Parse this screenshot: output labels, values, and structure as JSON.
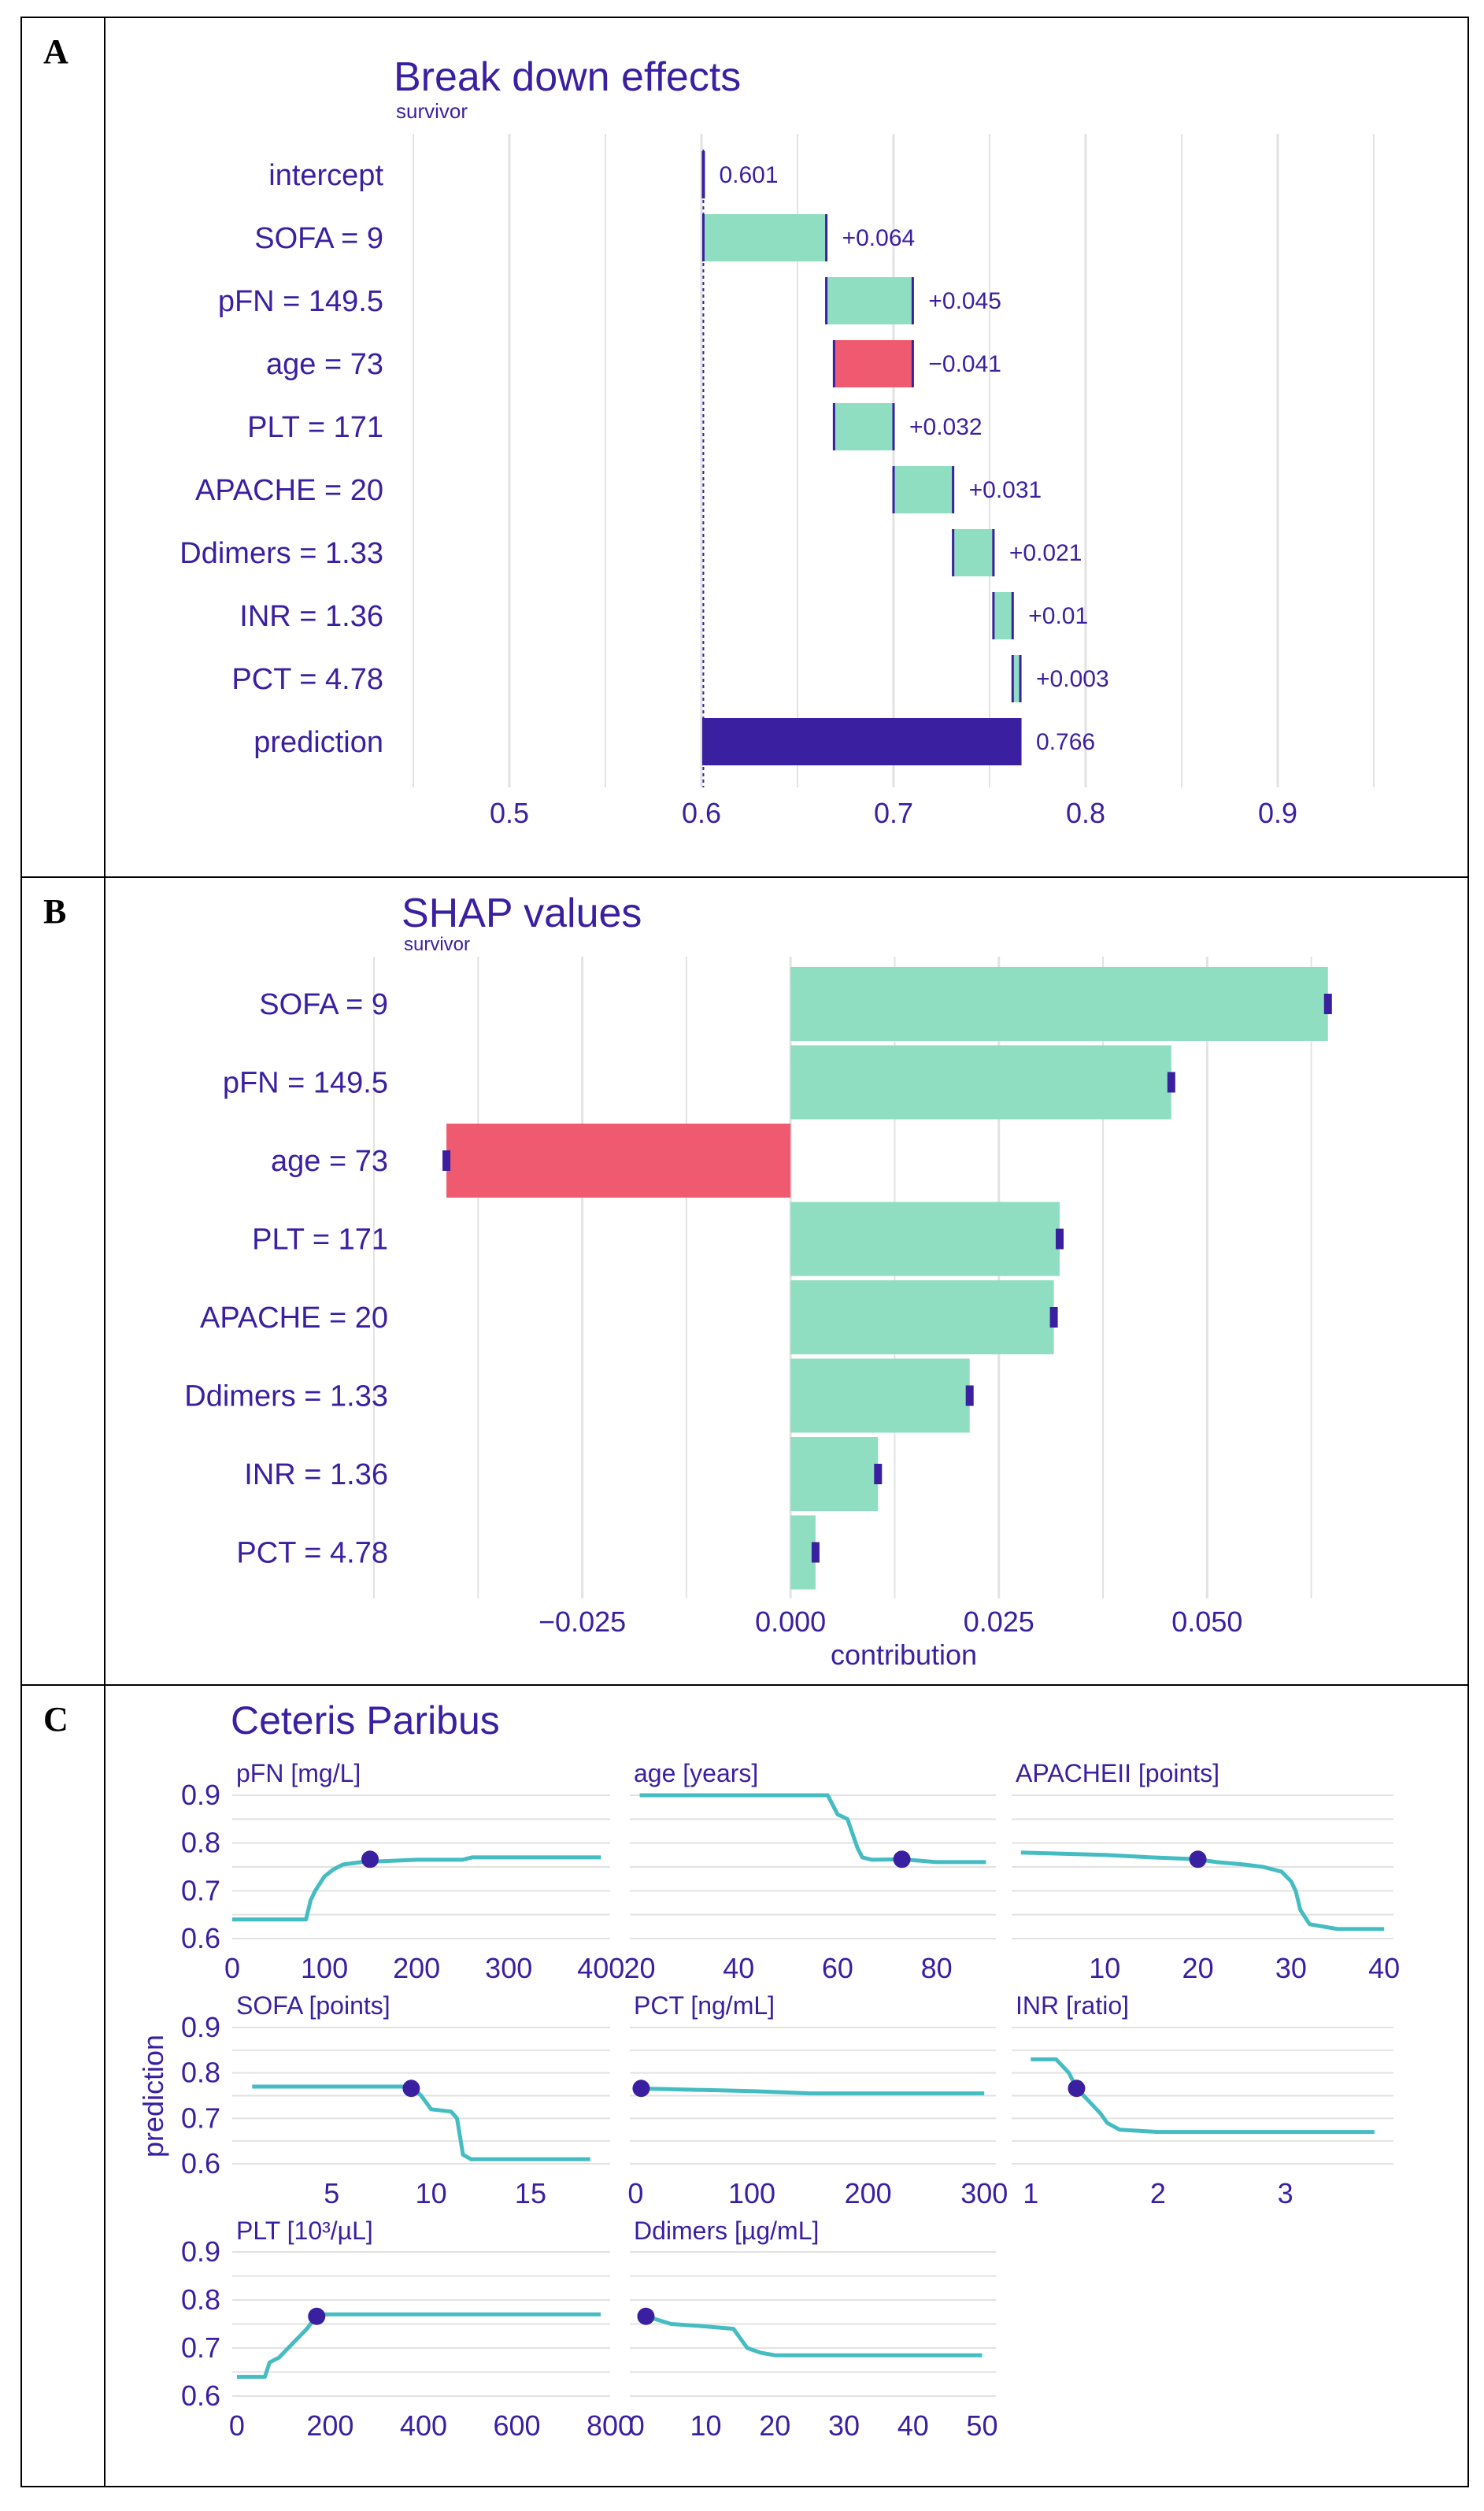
{
  "panels": [
    {
      "letter": "A"
    },
    {
      "letter": "B"
    },
    {
      "letter": "C"
    }
  ],
  "colors": {
    "positive": "#8fdec1",
    "negative": "#f05a71",
    "prediction": "#3a1fa0",
    "text": "#3a1fa0",
    "line": "#45bcc1",
    "grid": "#e2e2e2"
  },
  "chart_data": [
    {
      "type": "bar",
      "subtype": "waterfall",
      "title": "Break down effects",
      "subtitle": "survivor",
      "categories": [
        "intercept",
        "SOFA = 9",
        "pFN = 149.5",
        "age = 73",
        "PLT = 171",
        "APACHE = 20",
        "Ddimers = 1.33",
        "INR = 1.36",
        "PCT = 4.78",
        "prediction"
      ],
      "starts": [
        0.601,
        0.601,
        0.665,
        0.71,
        0.669,
        0.7,
        0.731,
        0.752,
        0.762,
        0.601
      ],
      "ends": [
        0.601,
        0.665,
        0.71,
        0.669,
        0.7,
        0.731,
        0.752,
        0.762,
        0.766,
        0.766
      ],
      "labels": [
        "0.601",
        "+0.064",
        "+0.045",
        "−0.041",
        "+0.032",
        "+0.031",
        "+0.021",
        "+0.01",
        "+0.003",
        "0.766"
      ],
      "kinds": [
        "intercept",
        "pos",
        "pos",
        "neg",
        "pos",
        "pos",
        "pos",
        "pos",
        "pos",
        "prediction"
      ],
      "xlim": [
        0.45,
        0.95
      ],
      "xticks": [
        0.5,
        0.6,
        0.7,
        0.8,
        0.9
      ],
      "xtick_labels": [
        "0.5",
        "0.6",
        "0.7",
        "0.8",
        "0.9"
      ],
      "baseline": 0.601
    },
    {
      "type": "bar",
      "subtype": "horizontal",
      "title": "SHAP values",
      "subtitle": "survivor",
      "categories": [
        "SOFA    = 9",
        "pFN = 149.5",
        "age = 73",
        "PLT = 171",
        "APACHE   = 20",
        "Ddimers = 1.33",
        "INR   = 1.36",
        "PCT     = 4.78"
      ],
      "values": [
        0.0645,
        0.0457,
        -0.0413,
        0.0323,
        0.0316,
        0.0215,
        0.0105,
        0.003
      ],
      "xlim": [
        -0.05,
        0.07
      ],
      "xticks": [
        -0.025,
        0.0,
        0.025,
        0.05
      ],
      "xtick_labels": [
        "−0.025",
        "0.000",
        "0.025",
        "0.050"
      ],
      "xlabel": "contribution"
    },
    {
      "type": "line",
      "title": "Ceteris Paribus",
      "ylabel": "prediction",
      "ylim": [
        0.6,
        0.9
      ],
      "yticks": [
        0.6,
        0.7,
        0.8,
        0.9
      ],
      "ytick_labels": [
        "0.6",
        "0.7",
        "0.8",
        "0.9"
      ],
      "panels": [
        {
          "title": "pFN [mg/L]",
          "xlim": [
            0,
            410
          ],
          "xticks": [
            0,
            100,
            200,
            300,
            400
          ],
          "x": [
            0,
            80,
            85,
            90,
            100,
            110,
            120,
            140,
            200,
            250,
            260,
            400
          ],
          "y": [
            0.64,
            0.64,
            0.68,
            0.7,
            0.73,
            0.745,
            0.755,
            0.76,
            0.765,
            0.765,
            0.77,
            0.77
          ],
          "point": [
            149.5,
            0.766
          ]
        },
        {
          "title": "age [years]",
          "xlim": [
            18,
            92
          ],
          "xticks": [
            20,
            40,
            60,
            80
          ],
          "x": [
            20,
            58,
            60,
            62,
            63,
            64,
            65,
            67,
            73,
            80,
            90
          ],
          "y": [
            0.9,
            0.9,
            0.86,
            0.85,
            0.82,
            0.79,
            0.77,
            0.765,
            0.766,
            0.76,
            0.76
          ],
          "point": [
            73,
            0.766
          ]
        },
        {
          "title": "APACHEII [points]",
          "xlim": [
            0,
            41
          ],
          "xticks": [
            10,
            20,
            30,
            40
          ],
          "x": [
            1,
            10,
            15,
            20,
            22,
            25,
            27,
            29,
            30,
            30.5,
            31,
            32,
            35,
            40
          ],
          "y": [
            0.78,
            0.775,
            0.77,
            0.766,
            0.76,
            0.755,
            0.75,
            0.74,
            0.72,
            0.7,
            0.66,
            0.63,
            0.62,
            0.62
          ],
          "point": [
            20,
            0.766
          ]
        },
        {
          "title": "SOFA [points]",
          "xlim": [
            0,
            19
          ],
          "xticks": [
            5,
            10,
            15
          ],
          "x": [
            1,
            9,
            9.5,
            10,
            11,
            11.3,
            11.6,
            12,
            18
          ],
          "y": [
            0.77,
            0.77,
            0.75,
            0.72,
            0.715,
            0.7,
            0.62,
            0.61,
            0.61
          ],
          "point": [
            9,
            0.766
          ]
        },
        {
          "title": "PCT [ng/mL]",
          "xlim": [
            -5,
            310
          ],
          "xticks": [
            0,
            100,
            200,
            300
          ],
          "x": [
            0,
            100,
            150,
            300
          ],
          "y": [
            0.766,
            0.76,
            0.755,
            0.755
          ],
          "point": [
            4.78,
            0.766
          ]
        },
        {
          "title": "INR [ratio]",
          "xlim": [
            0.85,
            3.85
          ],
          "xticks": [
            1,
            2,
            3
          ],
          "x": [
            1,
            1.2,
            1.3,
            1.36,
            1.45,
            1.55,
            1.6,
            1.7,
            2,
            3.7
          ],
          "y": [
            0.83,
            0.83,
            0.8,
            0.766,
            0.74,
            0.71,
            0.69,
            0.675,
            0.67,
            0.67
          ],
          "point": [
            1.36,
            0.766
          ]
        },
        {
          "title": "PLT [10³/µL]",
          "xlim": [
            -10,
            800
          ],
          "xticks": [
            0,
            200,
            400,
            600,
            800
          ],
          "x": [
            0,
            60,
            70,
            90,
            110,
            130,
            150,
            170,
            180,
            780
          ],
          "y": [
            0.64,
            0.64,
            0.67,
            0.68,
            0.7,
            0.72,
            0.74,
            0.766,
            0.77,
            0.77
          ],
          "point": [
            171,
            0.766
          ]
        },
        {
          "title": "Ddimers [µg/mL]",
          "xlim": [
            -1,
            52
          ],
          "xticks": [
            0,
            10,
            20,
            30,
            40,
            50
          ],
          "xtick_labels": [
            "0",
            "10",
            "20",
            "30",
            "40",
            "50"
          ],
          "x": [
            1.33,
            5,
            10,
            14,
            15,
            16,
            18,
            20,
            50
          ],
          "y": [
            0.766,
            0.75,
            0.745,
            0.74,
            0.72,
            0.7,
            0.69,
            0.685,
            0.685
          ],
          "point": [
            1.33,
            0.766
          ]
        }
      ]
    }
  ]
}
